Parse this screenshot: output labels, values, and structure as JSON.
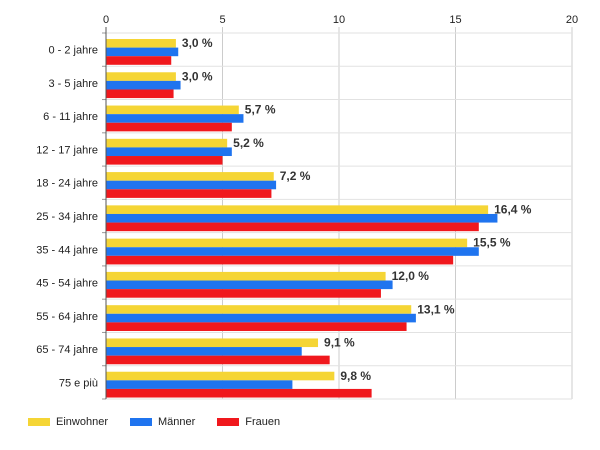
{
  "chart_data": {
    "type": "bar",
    "orientation": "horizontal",
    "categories": [
      "0 - 2 jahre",
      "3 - 5 jahre",
      "6 - 11 jahre",
      "12 - 17 jahre",
      "18 - 24 jahre",
      "25 - 34 jahre",
      "35 - 44 jahre",
      "45 - 54 jahre",
      "55 - 64 jahre",
      "65 - 74 jahre",
      "75 e più"
    ],
    "series": [
      {
        "name": "Einwohner",
        "color": "#f5d535",
        "values": [
          3.0,
          3.0,
          5.7,
          5.2,
          7.2,
          16.4,
          15.5,
          12.0,
          13.1,
          9.1,
          9.8
        ]
      },
      {
        "name": "Männer",
        "color": "#1f74ef",
        "values": [
          3.1,
          3.2,
          5.9,
          5.4,
          7.3,
          16.8,
          16.0,
          12.3,
          13.3,
          8.4,
          8.0
        ]
      },
      {
        "name": "Frauen",
        "color": "#f0181d",
        "values": [
          2.8,
          2.9,
          5.4,
          5.0,
          7.1,
          16.0,
          14.9,
          11.8,
          12.9,
          9.6,
          11.4
        ]
      }
    ],
    "data_labels": [
      "3,0 %",
      "3,0 %",
      "5,7 %",
      "5,2 %",
      "7,2 %",
      "16,4 %",
      "15,5 %",
      "12,0 %",
      "13,1 %",
      "9,1 %",
      "9,8 %"
    ],
    "xlim": [
      0,
      20
    ],
    "xticks": [
      "0",
      "5",
      "10",
      "15",
      "20"
    ],
    "xaxis_position": "top",
    "grid": true,
    "legend_position": "bottom-left",
    "title": "",
    "xlabel": "",
    "ylabel": ""
  }
}
